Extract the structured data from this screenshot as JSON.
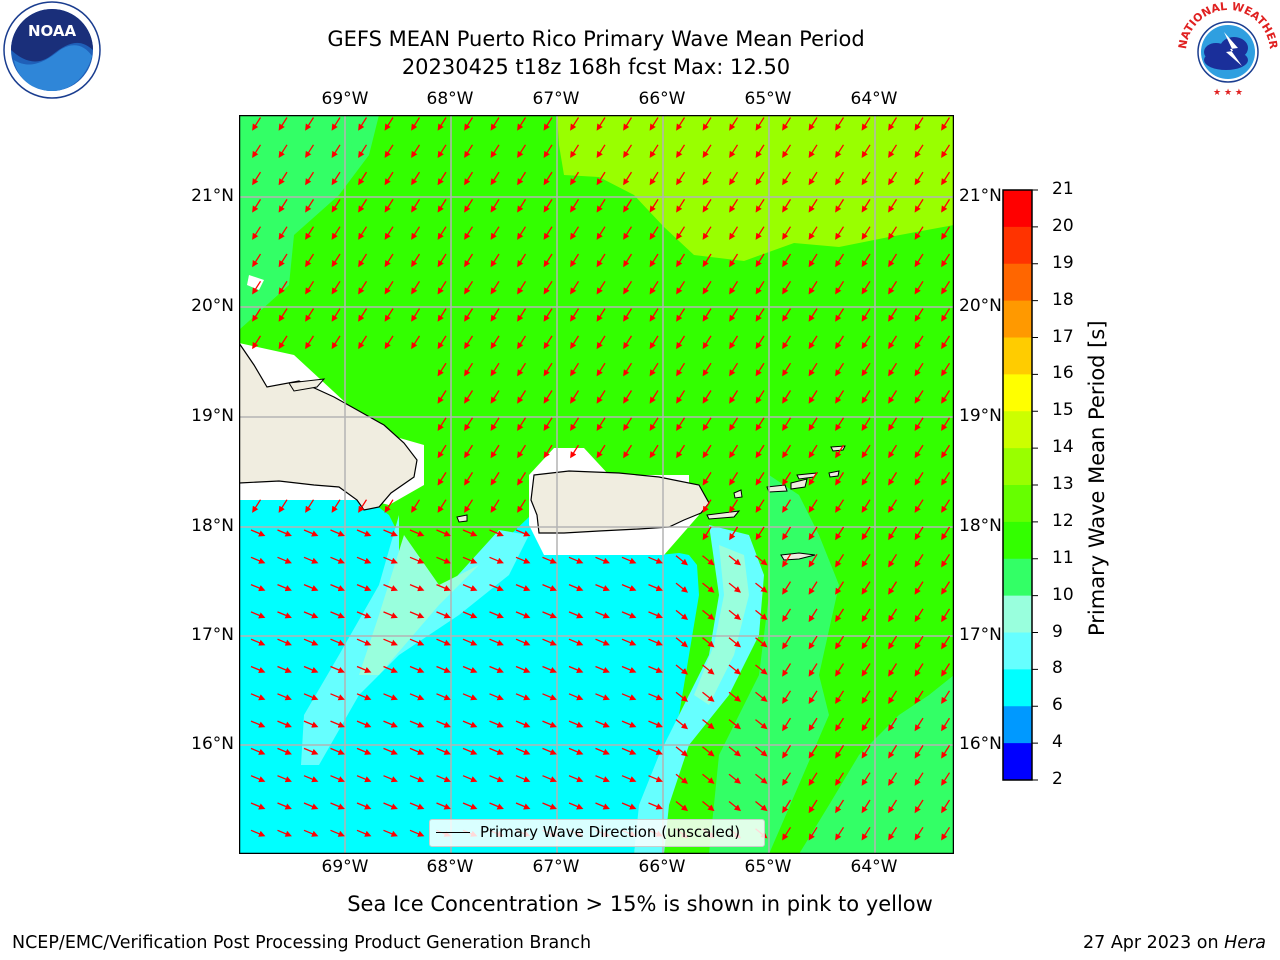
{
  "title": {
    "line1": "GEFS MEAN Puerto Rico Primary Wave Mean Period",
    "line2": "20230425 t18z 168h fcst   Max: 12.50"
  },
  "map": {
    "lon_labels": [
      "69°W",
      "68°W",
      "67°W",
      "66°W",
      "65°W",
      "64°W"
    ],
    "lat_labels": [
      "21°N",
      "20°N",
      "19°N",
      "18°N",
      "17°N",
      "16°N"
    ],
    "legend": "Primary Wave Direction (unscaled)",
    "colors": {
      "land": "#f0ede0",
      "coast": "#000000",
      "arrow": "#ff0000",
      "grid": "#b4b4b4"
    }
  },
  "colorbar": {
    "label": "Primary Wave Mean Period [s]",
    "ticks": [
      "21",
      "20",
      "19",
      "18",
      "17",
      "16",
      "15",
      "14",
      "13",
      "12",
      "11",
      "10",
      "9",
      "8",
      "6",
      "4",
      "2"
    ],
    "colors": [
      "#ff0000",
      "#ff3300",
      "#ff6600",
      "#ff9900",
      "#ffcc00",
      "#ffff00",
      "#ccff00",
      "#99ff00",
      "#66ff00",
      "#33ff00",
      "#33ff66",
      "#99ffdd",
      "#66ffff",
      "#00ffff",
      "#0099ff",
      "#0000ff"
    ]
  },
  "note": "Sea Ice Concentration > 15% is shown in pink to yellow",
  "footer": {
    "left": "NCEP/EMC/Verification Post Processing Product Generation Branch",
    "right_date": "27 Apr 2023 on ",
    "right_host": "Hera"
  },
  "logos": {
    "left": "NOAA",
    "right": "NATIONAL WEATHER SERVICE"
  }
}
